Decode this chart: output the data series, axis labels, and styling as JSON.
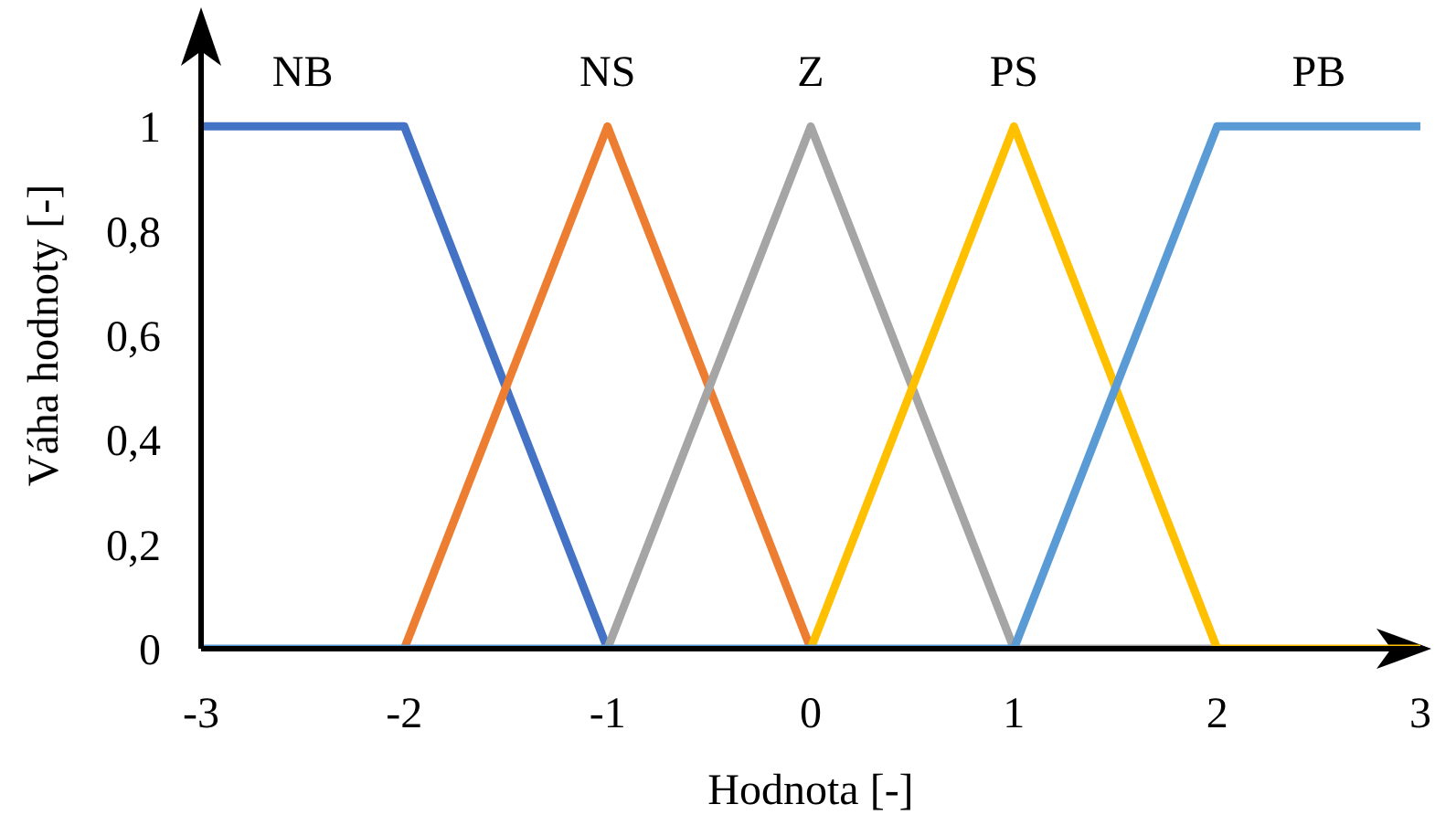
{
  "chart_data": {
    "type": "line",
    "xlabel": "Hodnota [-]",
    "ylabel": "Váha hodnoty [-]",
    "x": [
      -3,
      -2,
      -1,
      0,
      1,
      2,
      3
    ],
    "series": [
      {
        "name": "NB",
        "color": "#4472c4",
        "values": [
          1,
          1,
          0,
          null,
          null,
          null,
          null
        ]
      },
      {
        "name": "NS",
        "color": "#ed7d31",
        "values": [
          null,
          0,
          1,
          0,
          null,
          null,
          null
        ]
      },
      {
        "name": "Z",
        "color": "#a5a5a5",
        "values": [
          null,
          null,
          0,
          1,
          0,
          0,
          null
        ]
      },
      {
        "name": "PS",
        "color": "#ffc000",
        "values": [
          null,
          null,
          null,
          0,
          1,
          0,
          0
        ]
      },
      {
        "name": "PB",
        "color": "#5b9bd5",
        "values": [
          0,
          0,
          0,
          0,
          0,
          1,
          1
        ]
      }
    ],
    "xlim": [
      -3,
      3
    ],
    "xticks": [
      -3,
      -2,
      -1,
      0,
      1,
      2,
      3
    ],
    "ylim": [
      0,
      1.2
    ],
    "yticks": [
      0,
      {
        "value": 0.2,
        "label": "0,2"
      },
      {
        "value": 0.4,
        "label": "0,4"
      },
      {
        "value": 0.6,
        "label": "0,6"
      },
      {
        "value": 0.8,
        "label": "0,8"
      },
      1
    ],
    "grid": false,
    "legend": false,
    "marker": "none",
    "line_style": "solid"
  }
}
